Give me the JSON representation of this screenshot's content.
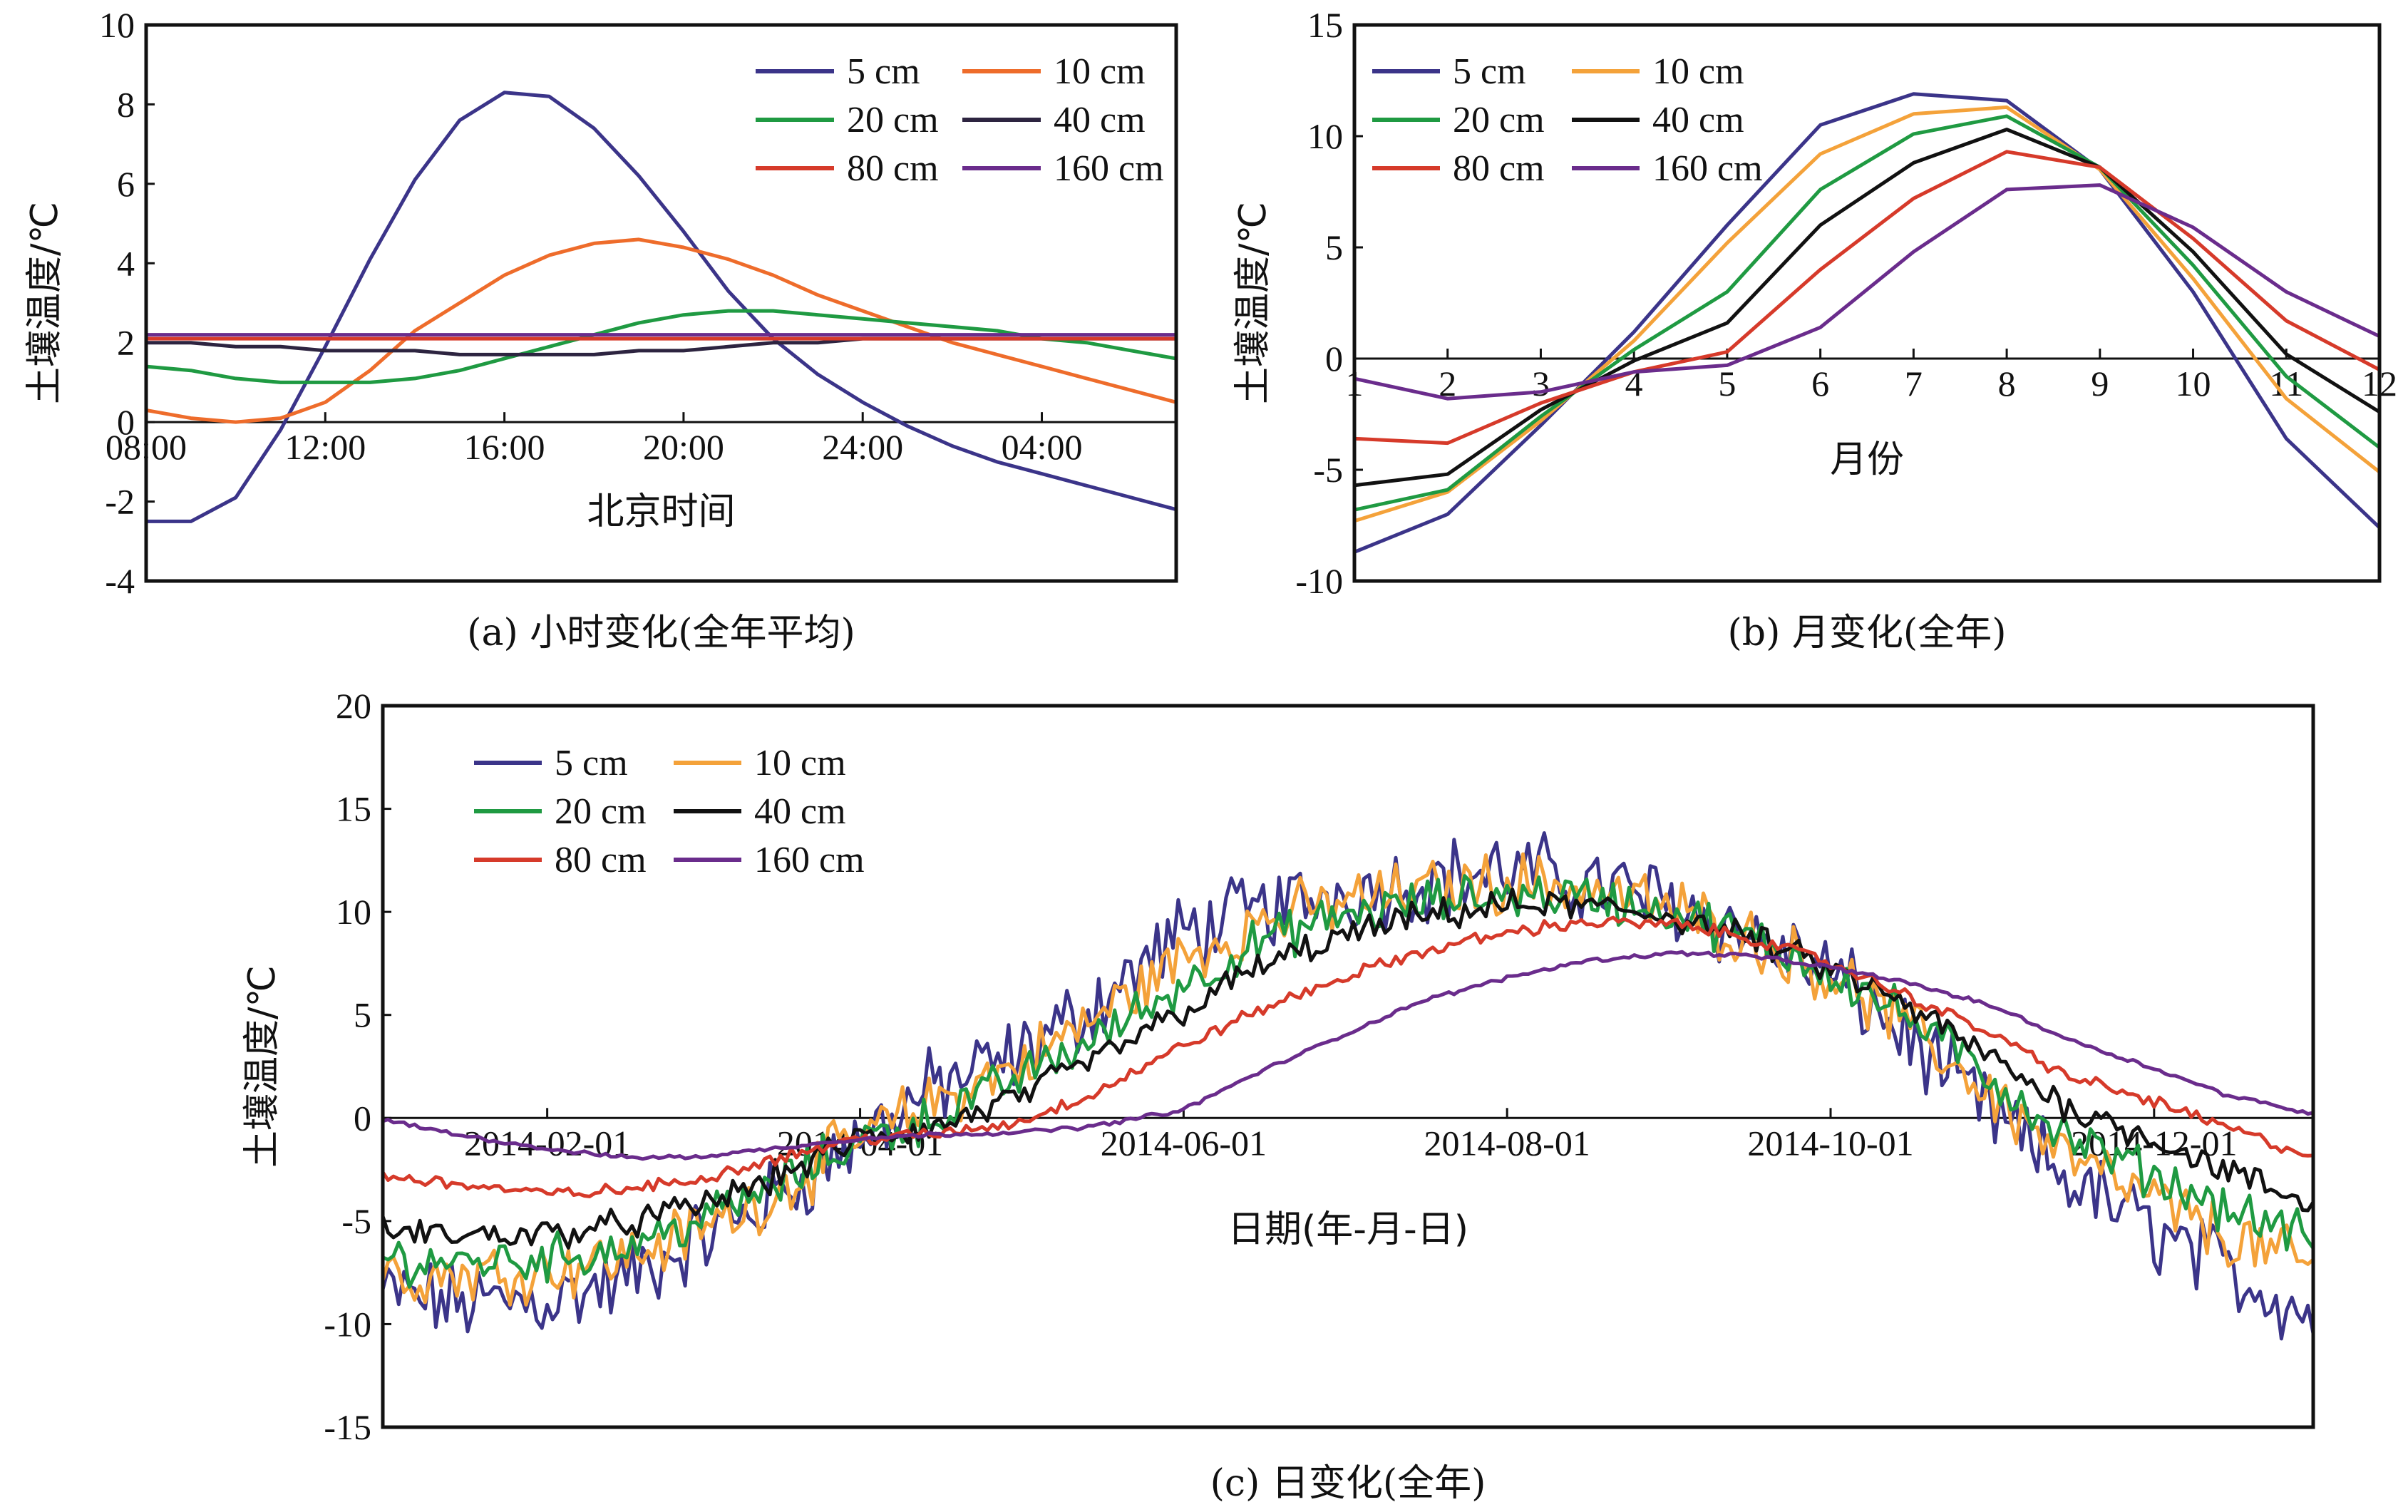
{
  "colors": {
    "5 cm": "#3b3489",
    "10 cm a": "#ee6c2b",
    "10 cm bc": "#f4a23a",
    "20 cm": "#1f9a42",
    "40 cm a": "#2d2440",
    "40 cm bc": "#111111",
    "80 cm": "#d63a2a",
    "160 cm": "#6a2c8c"
  },
  "chart_data": [
    {
      "id": "a",
      "type": "line",
      "caption": "(a) 小时变化(全年平均)",
      "xlabel": "北京时间",
      "ylabel": "土壤温度/℃",
      "x_ticks": [
        "08:00",
        "12:00",
        "16:00",
        "20:00",
        "24:00",
        "04:00"
      ],
      "x_tick_positions": [
        0,
        4,
        8,
        12,
        16,
        20
      ],
      "xlim": [
        0,
        23
      ],
      "ylim": [
        -4,
        10
      ],
      "y_ticks": [
        -4,
        -2,
        0,
        2,
        4,
        6,
        8,
        10
      ],
      "legend_position": "top-right",
      "x": [
        0,
        1,
        2,
        3,
        4,
        5,
        6,
        7,
        8,
        9,
        10,
        11,
        12,
        13,
        14,
        15,
        16,
        17,
        18,
        19,
        20,
        21,
        22,
        23
      ],
      "series": [
        {
          "name": "5 cm",
          "color_key": "5 cm",
          "values": [
            -2.5,
            -2.5,
            -1.9,
            -0.2,
            1.9,
            4.1,
            6.1,
            7.6,
            8.3,
            8.2,
            7.4,
            6.2,
            4.8,
            3.3,
            2.1,
            1.2,
            0.5,
            -0.1,
            -0.6,
            -1.0,
            -1.3,
            -1.6,
            -1.9,
            -2.2
          ]
        },
        {
          "name": "10 cm",
          "color_key": "10 cm a",
          "values": [
            0.3,
            0.1,
            0.0,
            0.1,
            0.5,
            1.3,
            2.3,
            3.0,
            3.7,
            4.2,
            4.5,
            4.6,
            4.4,
            4.1,
            3.7,
            3.2,
            2.8,
            2.4,
            2.0,
            1.7,
            1.4,
            1.1,
            0.8,
            0.5
          ]
        },
        {
          "name": "20 cm",
          "color_key": "20 cm",
          "values": [
            1.4,
            1.3,
            1.1,
            1.0,
            1.0,
            1.0,
            1.1,
            1.3,
            1.6,
            1.9,
            2.2,
            2.5,
            2.7,
            2.8,
            2.8,
            2.7,
            2.6,
            2.5,
            2.4,
            2.3,
            2.1,
            2.0,
            1.8,
            1.6
          ]
        },
        {
          "name": "40 cm",
          "color_key": "40 cm a",
          "values": [
            2.0,
            2.0,
            1.9,
            1.9,
            1.8,
            1.8,
            1.8,
            1.7,
            1.7,
            1.7,
            1.7,
            1.8,
            1.8,
            1.9,
            2.0,
            2.0,
            2.1,
            2.1,
            2.1,
            2.1,
            2.1,
            2.1,
            2.1,
            2.1
          ]
        },
        {
          "name": "80 cm",
          "color_key": "80 cm",
          "values": [
            2.1,
            2.1,
            2.1,
            2.1,
            2.1,
            2.1,
            2.1,
            2.1,
            2.1,
            2.1,
            2.1,
            2.1,
            2.1,
            2.1,
            2.1,
            2.1,
            2.1,
            2.1,
            2.1,
            2.1,
            2.1,
            2.1,
            2.1,
            2.1
          ]
        },
        {
          "name": "160 cm",
          "color_key": "160 cm",
          "values": [
            2.2,
            2.2,
            2.2,
            2.2,
            2.2,
            2.2,
            2.2,
            2.2,
            2.2,
            2.2,
            2.2,
            2.2,
            2.2,
            2.2,
            2.2,
            2.2,
            2.2,
            2.2,
            2.2,
            2.2,
            2.2,
            2.2,
            2.2,
            2.2
          ]
        }
      ]
    },
    {
      "id": "b",
      "type": "line",
      "caption": "(b) 月变化(全年)",
      "xlabel": "月份",
      "ylabel": "土壤温度/℃",
      "x_ticks": [
        "1",
        "2",
        "3",
        "4",
        "5",
        "6",
        "7",
        "8",
        "9",
        "10",
        "11",
        "12"
      ],
      "x_tick_positions": [
        1,
        2,
        3,
        4,
        5,
        6,
        7,
        8,
        9,
        10,
        11,
        12
      ],
      "xlim": [
        1,
        12
      ],
      "ylim": [
        -10,
        15
      ],
      "y_ticks": [
        -10,
        -5,
        0,
        5,
        10,
        15
      ],
      "legend_position": "top-left",
      "x": [
        1,
        2,
        3,
        4,
        5,
        6,
        7,
        8,
        9,
        10,
        11,
        12
      ],
      "series": [
        {
          "name": "5 cm",
          "color_key": "5 cm",
          "values": [
            -8.7,
            -7.0,
            -3.0,
            1.2,
            6.0,
            10.5,
            11.9,
            11.6,
            8.5,
            3.0,
            -3.6,
            -7.6
          ]
        },
        {
          "name": "10 cm",
          "color_key": "10 cm bc",
          "values": [
            -7.3,
            -6.0,
            -2.8,
            0.8,
            5.2,
            9.2,
            11.0,
            11.3,
            8.5,
            3.6,
            -1.8,
            -5.1
          ]
        },
        {
          "name": "20 cm",
          "color_key": "20 cm",
          "values": [
            -6.8,
            -5.9,
            -2.6,
            0.4,
            3.0,
            7.6,
            10.1,
            10.9,
            8.6,
            4.2,
            -0.8,
            -4.0
          ]
        },
        {
          "name": "40 cm",
          "color_key": "40 cm bc",
          "values": [
            -5.7,
            -5.2,
            -2.3,
            -0.1,
            1.6,
            6.0,
            8.8,
            10.3,
            8.6,
            4.8,
            0.2,
            -2.4
          ]
        },
        {
          "name": "80 cm",
          "color_key": "80 cm",
          "values": [
            -3.6,
            -3.8,
            -2.0,
            -0.6,
            0.3,
            4.0,
            7.2,
            9.3,
            8.6,
            5.4,
            1.7,
            -0.5
          ]
        },
        {
          "name": "160 cm",
          "color_key": "160 cm",
          "values": [
            -0.9,
            -1.8,
            -1.5,
            -0.6,
            -0.3,
            1.4,
            4.8,
            7.6,
            7.8,
            5.9,
            3.0,
            1.0
          ]
        }
      ]
    },
    {
      "id": "c",
      "type": "line",
      "caption": "(c) 日变化(全年)",
      "xlabel": "日期(年-月-日)",
      "ylabel": "土壤温度/℃",
      "x_ticks": [
        "2014-02-01",
        "2014-04-01",
        "2014-06-01",
        "2014-08-01",
        "2014-10-01",
        "2014-12-01"
      ],
      "x_tick_positions": [
        "2014-02-01",
        "2014-04-01",
        "2014-06-01",
        "2014-08-01",
        "2014-10-01",
        "2014-12-01"
      ],
      "xlim": [
        "2014-01-01",
        "2014-12-31"
      ],
      "ylim": [
        -15,
        20
      ],
      "y_ticks": [
        -15,
        -10,
        -5,
        0,
        5,
        10,
        15,
        20
      ],
      "legend_position": "top-left",
      "x": [
        "2014-01-01",
        "2014-01-15",
        "2014-02-01",
        "2014-02-15",
        "2014-03-01",
        "2014-03-15",
        "2014-04-01",
        "2014-04-15",
        "2014-05-01",
        "2014-05-15",
        "2014-06-01",
        "2014-06-15",
        "2014-07-01",
        "2014-07-15",
        "2014-08-01",
        "2014-08-15",
        "2014-09-01",
        "2014-09-15",
        "2014-10-01",
        "2014-10-15",
        "2014-11-01",
        "2014-11-15",
        "2014-12-01",
        "2014-12-15",
        "2014-12-31"
      ],
      "series": [
        {
          "name": "5 cm",
          "color_key": "5 cm",
          "values": [
            -8.5,
            -9.0,
            -8.8,
            -8.0,
            -6.0,
            -4.0,
            -1.0,
            1.5,
            3.0,
            5.5,
            9.0,
            10.0,
            11.0,
            11.5,
            12.0,
            11.5,
            10.5,
            9.0,
            7.0,
            4.0,
            0.0,
            -3.0,
            -5.5,
            -7.5,
            -9.5
          ]
        },
        {
          "name": "10 cm",
          "color_key": "10 cm bc",
          "values": [
            -7.5,
            -7.6,
            -7.3,
            -6.8,
            -5.5,
            -3.8,
            -1.0,
            0.8,
            2.6,
            4.8,
            7.8,
            9.5,
            10.5,
            11.0,
            11.5,
            11.2,
            10.2,
            8.8,
            7.0,
            4.5,
            1.0,
            -2.0,
            -4.0,
            -5.8,
            -7.2
          ]
        },
        {
          "name": "20 cm",
          "color_key": "20 cm",
          "values": [
            -6.8,
            -7.0,
            -6.8,
            -6.3,
            -5.0,
            -3.5,
            -1.0,
            0.0,
            2.0,
            3.8,
            6.5,
            8.5,
            9.8,
            10.4,
            10.9,
            10.8,
            10.0,
            8.8,
            7.1,
            5.0,
            1.8,
            -1.0,
            -2.8,
            -4.4,
            -5.8
          ]
        },
        {
          "name": "40 cm",
          "color_key": "40 cm bc",
          "values": [
            -5.5,
            -5.7,
            -5.6,
            -5.2,
            -4.3,
            -3.0,
            -1.0,
            -0.5,
            1.0,
            2.8,
            5.2,
            7.3,
            8.8,
            9.7,
            10.3,
            10.3,
            9.8,
            8.8,
            7.2,
            5.5,
            2.8,
            0.5,
            -1.0,
            -2.6,
            -4.3
          ]
        },
        {
          "name": "80 cm",
          "color_key": "80 cm",
          "values": [
            -2.8,
            -3.2,
            -3.7,
            -3.5,
            -3.0,
            -2.0,
            -1.0,
            -0.8,
            -0.2,
            1.2,
            3.5,
            5.2,
            6.8,
            8.0,
            9.0,
            9.5,
            9.4,
            8.8,
            7.5,
            6.0,
            4.0,
            2.0,
            0.8,
            -0.5,
            -1.9
          ]
        },
        {
          "name": "160 cm",
          "color_key": "160 cm",
          "values": [
            -0.1,
            -0.8,
            -1.5,
            -1.9,
            -1.9,
            -1.5,
            -1.0,
            -0.8,
            -0.7,
            -0.4,
            0.4,
            2.2,
            4.0,
            5.6,
            6.8,
            7.6,
            8.0,
            7.9,
            7.3,
            6.6,
            5.4,
            3.8,
            2.4,
            1.1,
            0.2
          ]
        }
      ]
    }
  ]
}
